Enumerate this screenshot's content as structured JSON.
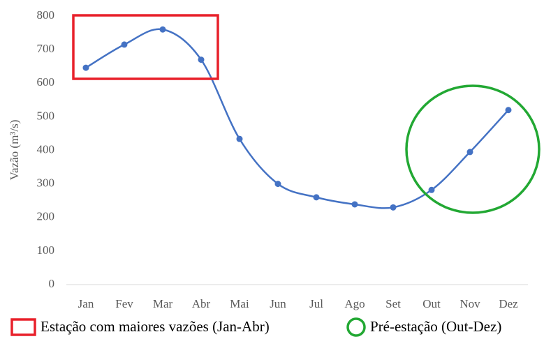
{
  "chart_data": {
    "type": "line",
    "y_label": "Vazão (m³/s)",
    "categories": [
      "Jan",
      "Fev",
      "Mar",
      "Abr",
      "Mai",
      "Jun",
      "Jul",
      "Ago",
      "Set",
      "Out",
      "Nov",
      "Dez"
    ],
    "series": [
      {
        "name": "Vazão",
        "color": "#4472c4",
        "values": [
          646,
          715,
          760,
          670,
          434,
          300,
          260,
          239,
          230,
          282,
          395,
          520
        ]
      }
    ],
    "ylim": [
      0,
      800
    ],
    "yticks": [
      0,
      100,
      200,
      300,
      400,
      500,
      600,
      700,
      800
    ],
    "grid": false,
    "smooth": true,
    "annotations": [
      {
        "shape": "rectangle",
        "color": "#e8202a",
        "label": "Estação com maiores vazões (Jan-Abr)"
      },
      {
        "shape": "circle",
        "color": "#22a833",
        "label": "Pré-estação (Out-Dez)"
      }
    ]
  }
}
